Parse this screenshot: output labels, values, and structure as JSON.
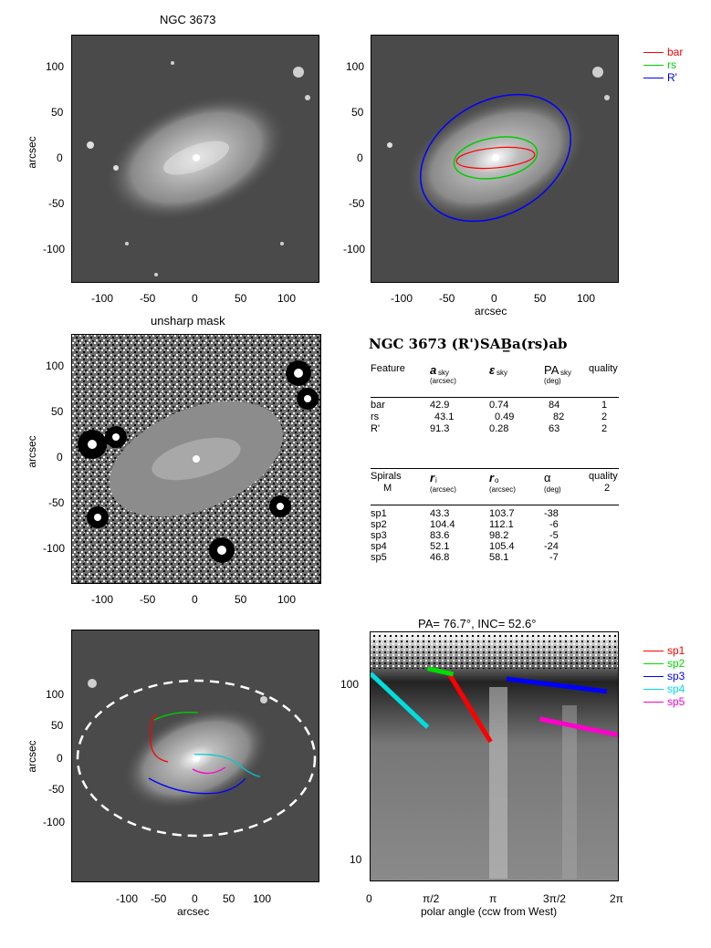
{
  "panel1": {
    "title": "NGC 3673",
    "ylabel": "arcsec",
    "yticks": [
      "100",
      "50",
      "0",
      "-50",
      "-100"
    ],
    "xticks": [
      "-100",
      "-50",
      "0",
      "50",
      "100"
    ]
  },
  "panel2": {
    "xlabel": "arcsec",
    "yticks": [
      "100",
      "50",
      "0",
      "-50",
      "-100"
    ],
    "xticks": [
      "-100",
      "-50",
      "0",
      "50",
      "100"
    ],
    "legend": [
      {
        "label": "bar",
        "color": "#ff0000"
      },
      {
        "label": "rs",
        "color": "#00cc00"
      },
      {
        "label": "R'",
        "color": "#0000ff"
      }
    ]
  },
  "panel3": {
    "title": "unsharp mask",
    "ylabel": "arcsec",
    "yticks": [
      "100",
      "50",
      "0",
      "-50",
      "-100"
    ],
    "xticks": [
      "-100",
      "-50",
      "0",
      "50",
      "100"
    ]
  },
  "table": {
    "heading": "NGC 3673  (R')SAB̲a(rs)ab",
    "feature_header": [
      "Feature",
      "a",
      "sky",
      "(arcsec)",
      "ε",
      "sky",
      "PA",
      "sky",
      "(deg)",
      "quality"
    ],
    "features": [
      [
        "bar",
        "42.9",
        "0.74",
        "84",
        "1"
      ],
      [
        "rs",
        "43.1",
        "0.49",
        "82",
        "2"
      ],
      [
        "R'",
        "91.3",
        "0.28",
        "63",
        "2"
      ]
    ],
    "spiral_header": [
      "Spirals",
      "M",
      "r",
      "i",
      "(arcsec)",
      "r",
      "o",
      "(arcsec)",
      "α",
      "(deg)",
      "quality",
      "2"
    ],
    "spirals": [
      [
        "sp1",
        "43.3",
        "103.7",
        "-38"
      ],
      [
        "sp2",
        "104.4",
        "112.1",
        "-6"
      ],
      [
        "sp3",
        "83.6",
        "98.2",
        "-5"
      ],
      [
        "sp4",
        "52.1",
        "105.4",
        "-24"
      ],
      [
        "sp5",
        "46.8",
        "58.1",
        "-7"
      ]
    ]
  },
  "panel5": {
    "ylabel": "arcsec",
    "xlabel": "arcsec",
    "yticks": [
      "100",
      "50",
      "0",
      "-50",
      "-100"
    ],
    "xticks": [
      "-100",
      "-50",
      "0",
      "50",
      "100"
    ]
  },
  "panel6": {
    "title": "PA=  76.7°, INC=  52.6°",
    "xlabel": "polar angle (ccw from West)",
    "xticks": [
      "0",
      "π/2",
      "π",
      "3π/2",
      "2π"
    ],
    "yticks": [
      "100",
      "10"
    ],
    "legend": [
      {
        "label": "sp1",
        "color": "#ff0000"
      },
      {
        "label": "sp2",
        "color": "#00dd00"
      },
      {
        "label": "sp3",
        "color": "#0000ff"
      },
      {
        "label": "sp4",
        "color": "#00dddd"
      },
      {
        "label": "sp5",
        "color": "#ff00cc"
      }
    ]
  },
  "chart_data": [
    {
      "type": "line",
      "note_panel": "polar plot",
      "x_unit": "radians",
      "ylim": [
        7,
        180
      ],
      "yscale": "log",
      "series": [
        {
          "name": "sp1",
          "x": [
            2.0,
            3.05
          ],
          "y": [
            104,
            43
          ]
        },
        {
          "name": "sp2",
          "x": [
            1.45,
            2.1
          ],
          "y": [
            112,
            104
          ]
        },
        {
          "name": "sp3",
          "x": [
            3.45,
            6.0
          ],
          "y": [
            98,
            83
          ]
        },
        {
          "name": "sp4",
          "x": [
            0.0,
            1.45
          ],
          "y": [
            105,
            52
          ]
        },
        {
          "name": "sp5",
          "x": [
            4.3,
            6.28
          ],
          "y": [
            58,
            47
          ]
        }
      ]
    }
  ]
}
